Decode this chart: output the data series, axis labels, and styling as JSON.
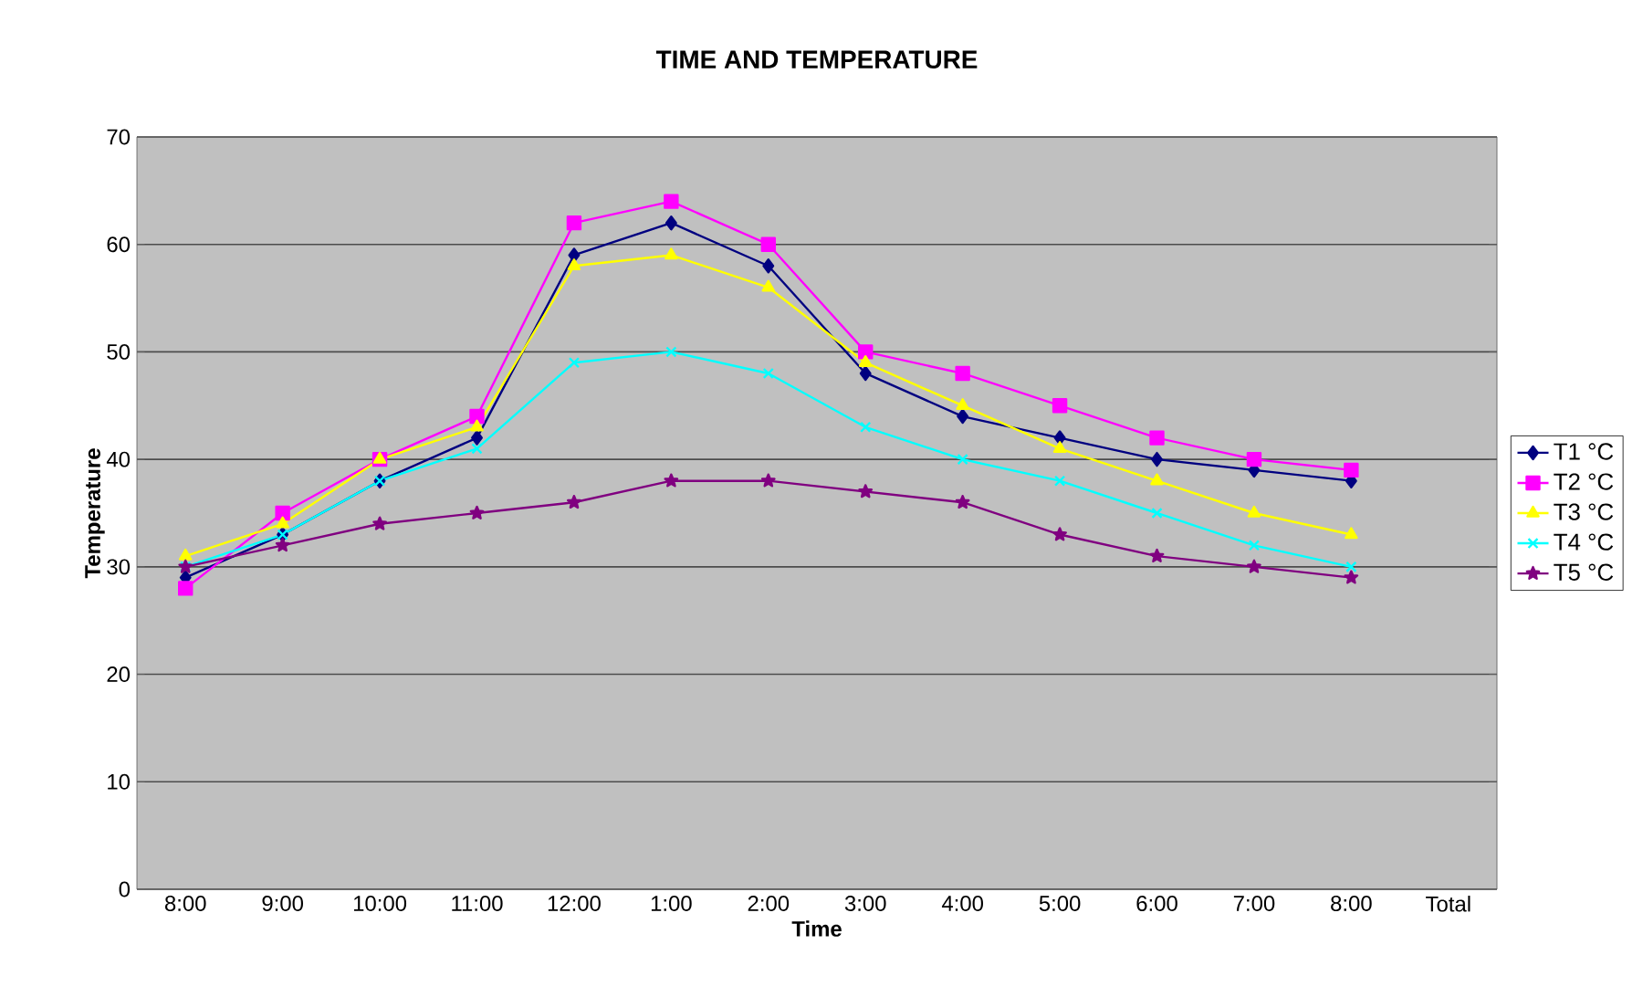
{
  "chart_data": {
    "type": "line",
    "title": "TIME AND TEMPERATURE",
    "xlabel": "Time",
    "ylabel": "Temperature",
    "categories": [
      "8:00",
      "9:00",
      "10:00",
      "11:00",
      "12:00",
      "1:00",
      "2:00",
      "3:00",
      "4:00",
      "5:00",
      "6:00",
      "7:00",
      "8:00",
      "Total"
    ],
    "series": [
      {
        "name": "T1 °C",
        "color": "#000080",
        "marker": "diamond",
        "values": [
          29,
          33,
          38,
          42,
          59,
          62,
          58,
          48,
          44,
          42,
          40,
          39,
          38,
          null
        ]
      },
      {
        "name": "T2 °C",
        "color": "#ff00ff",
        "marker": "square",
        "values": [
          28,
          35,
          40,
          44,
          62,
          64,
          60,
          50,
          48,
          45,
          42,
          40,
          39,
          null
        ]
      },
      {
        "name": "T3 °C",
        "color": "#ffff00",
        "marker": "triangle",
        "values": [
          31,
          34,
          40,
          43,
          58,
          59,
          56,
          49,
          45,
          41,
          38,
          35,
          33,
          null
        ]
      },
      {
        "name": "T4 °C",
        "color": "#00ffff",
        "marker": "cross",
        "values": [
          30,
          33,
          38,
          41,
          49,
          50,
          48,
          43,
          40,
          38,
          35,
          32,
          30,
          null
        ]
      },
      {
        "name": "T5 °C",
        "color": "#800080",
        "marker": "star",
        "values": [
          30,
          32,
          34,
          35,
          36,
          38,
          38,
          37,
          36,
          33,
          31,
          30,
          29,
          null
        ]
      }
    ],
    "ylim": [
      0,
      70
    ],
    "yticks": [
      0,
      10,
      20,
      30,
      40,
      50,
      60,
      70
    ],
    "grid": "y",
    "legend": "right",
    "line_style": "solid"
  }
}
